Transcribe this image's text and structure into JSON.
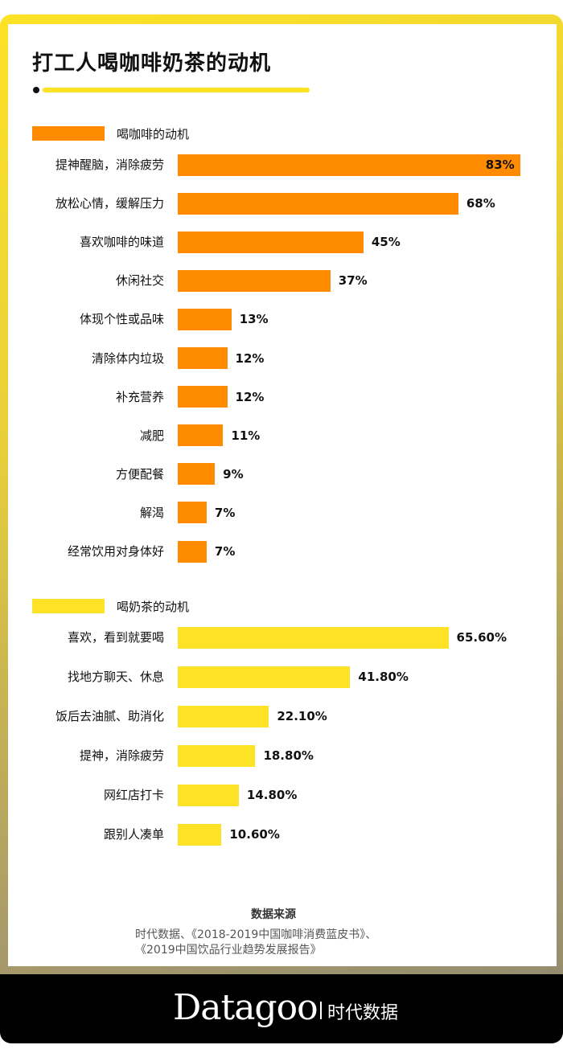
{
  "title": "打工人喝咖啡奶茶的动机",
  "chart_data": [
    {
      "type": "bar",
      "orientation": "horizontal",
      "legend": "喝咖啡的动机",
      "color": "#ff8c00",
      "categories": [
        "提神醒脑，消除疲劳",
        "放松心情，缓解压力",
        "喜欢咖啡的味道",
        "休闲社交",
        "体现个性或品味",
        "清除体内垃圾",
        "补充营养",
        "减肥",
        "方便配餐",
        "解渴",
        "经常饮用对身体好"
      ],
      "values": [
        83,
        68,
        45,
        37,
        13,
        12,
        12,
        11,
        9,
        7,
        7
      ],
      "labels": [
        "83%",
        "68%",
        "45%",
        "37%",
        "13%",
        "12%",
        "12%",
        "11%",
        "9%",
        "7%",
        "7%"
      ],
      "unit": "%"
    },
    {
      "type": "bar",
      "orientation": "horizontal",
      "legend": "喝奶茶的动机",
      "color": "#fde225",
      "categories": [
        "喜欢，看到就要喝",
        "找地方聊天、休息",
        "饭后去油腻、助消化",
        "提神，消除疲劳",
        "网红店打卡",
        "跟别人凑单"
      ],
      "values": [
        65.6,
        41.8,
        22.1,
        18.8,
        14.8,
        10.6
      ],
      "labels": [
        "65.60%",
        "41.80%",
        "22.10%",
        "18.80%",
        "14.80%",
        "10.60%"
      ],
      "unit": "%"
    }
  ],
  "source": {
    "title": "数据来源",
    "lines": [
      "时代数据、《2018-2019中国咖啡消费蓝皮书》、",
      "《2019中国饮品行业趋势发展报告》"
    ]
  },
  "footer": {
    "logo": "Datagoo",
    "logo_cn": "时代数据"
  },
  "colors": {
    "coffee": "#ff8c00",
    "tea": "#fde225",
    "accent": "#fde225"
  }
}
